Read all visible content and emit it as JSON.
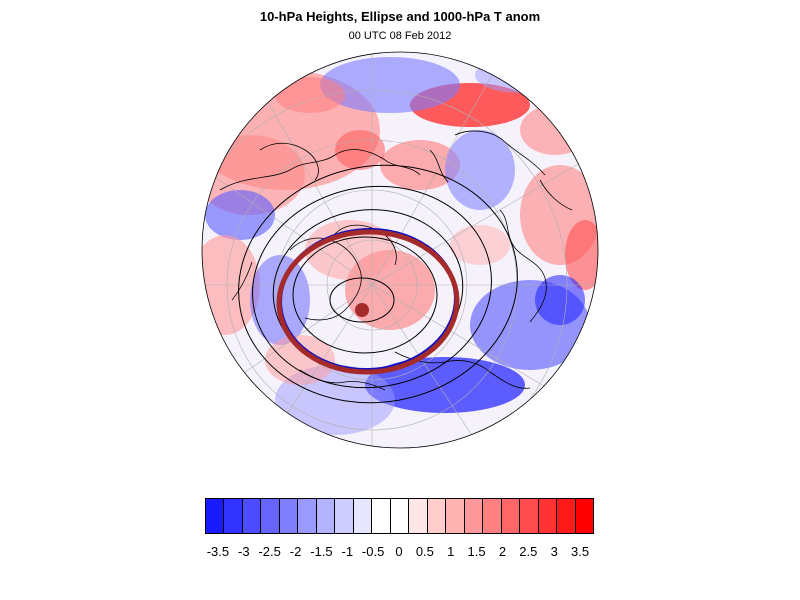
{
  "header": {
    "title": "10-hPa Heights, Ellipse and 1000-hPa T anom",
    "subtitle": "00 UTC 08 Feb 2012"
  },
  "legend": {
    "labels": [
      "-3.5",
      "-3",
      "-2.5",
      "-2",
      "-1.5",
      "-1",
      "-0.5",
      "0",
      "0.5",
      "1",
      "1.5",
      "2",
      "2.5",
      "3",
      "3.5"
    ],
    "colors": [
      "#1a1aff",
      "#3333ff",
      "#4d4dff",
      "#6666ff",
      "#8080ff",
      "#9999ff",
      "#b3b3ff",
      "#ccccff",
      "#e6e6ff",
      "#ffffff",
      "#ffffff",
      "#ffe6e6",
      "#ffcccc",
      "#ffb3b3",
      "#ff9999",
      "#ff8080",
      "#ff6666",
      "#ff4d4d",
      "#ff3333",
      "#ff1a1a",
      "#ff0000"
    ]
  },
  "map": {
    "projection": "polar stereographic (north pole)",
    "field": "1000-hPa T anom",
    "ellipse_color": "#a52a2a",
    "contour_color": "#000000"
  }
}
